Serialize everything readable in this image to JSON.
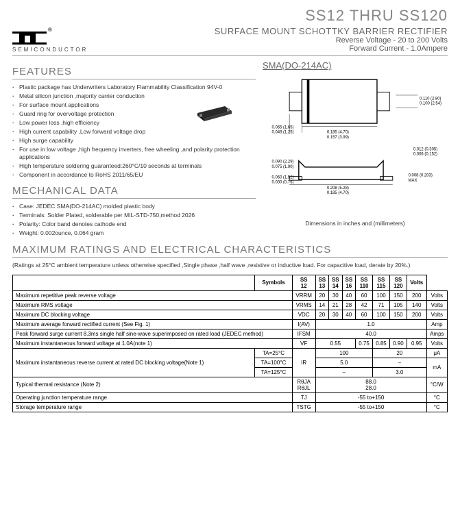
{
  "header": {
    "title": "SS12 THRU SS120",
    "subtitle": "SURFACE MOUNT SCHOTTKY BARRIER RECTIFIER",
    "reverse_voltage": "Reverse Voltage - 20 to 200 Volts",
    "forward_current": "Forward Current - 1.0Ampere",
    "logo_text": "SEMICONDUCTOR",
    "reg_mark": "®"
  },
  "features": {
    "heading": "FEATURES",
    "items": [
      "Plastic package has Underwriters Laboratory Flammability Classification 94V-0",
      "Metal silicon junction ,majority carrier conduction",
      "For surface mount applications",
      "Guard ring for overvoltage protection",
      "Low power loss ,high efficiency",
      "High current capability ,Low forward voltage drop",
      "High surge capability",
      "For use in low voltage ,high frequency inverters, free wheeling ,and polarity protection applications",
      "High temperature soldering guaranteed:260°C/10 seconds at terminals",
      "Component in accordance to RoHS 2011/65/EU"
    ]
  },
  "mechanical": {
    "heading": "MECHANICAL DATA",
    "items": [
      "Case: JEDEC SMA(DO-214AC) molded plastic body",
      "Terminals: Solder Plated, solderable per MIL-STD-750,method 2026",
      "Polarity: Color band denotes cathode end",
      "Weight: 0.002ounce, 0.064 gram"
    ]
  },
  "package": {
    "title": "SMA(DO-214AC)",
    "dim_caption": "Dimensions in inches and (millimeters)",
    "dims": {
      "d1": "0.110 (2.80)",
      "d1b": "0.100 (2.54)",
      "d2": "0.065 (1.65)",
      "d2b": "0.049 (1.25)",
      "d3": "0.185 (4.70)",
      "d3b": "0.157 (3.99)",
      "d4": "0.012 (0.305)",
      "d4b": "0.006 (0.152)",
      "d5": "0.090 (2.29)",
      "d5b": "0.075 (1.90)",
      "d6": "0.060 (1.52)",
      "d6b": "0.030 (0.76)",
      "d7": "0.008 (0.203)",
      "d7b": "MAX",
      "d8": "0.208 (5.28)",
      "d8b": "0.185 (4.70)"
    }
  },
  "ratings": {
    "heading": "MAXIMUM RATINGS AND ELECTRICAL CHARACTERISTICS",
    "note": "(Ratings at 25°C ambient temperature unless otherwise specified ,Single phase ,half wave ,resistive or inductive load. For capacitive load, derate by 20%.)",
    "columns": [
      "Symbols",
      "SS 12",
      "SS 13",
      "SS 14",
      "SS 16",
      "SS 110",
      "SS 115",
      "SS 120",
      "Volts"
    ],
    "rows": [
      {
        "label": "Maximum repetitive peak reverse voltage",
        "symbol": "VRRM",
        "vals": [
          "20",
          "30",
          "40",
          "60",
          "100",
          "150",
          "200"
        ],
        "unit": "Volts"
      },
      {
        "label": "Maximum RMS voltage",
        "symbol": "VRMS",
        "vals": [
          "14",
          "21",
          "28",
          "42",
          "71",
          "105",
          "140"
        ],
        "unit": "Volts"
      },
      {
        "label": "Maximum DC blocking voltage",
        "symbol": "VDC",
        "vals": [
          "20",
          "30",
          "40",
          "60",
          "100",
          "150",
          "200"
        ],
        "unit": "Volts"
      },
      {
        "label": "Maximum average forward rectified current (See Fig. 1)",
        "symbol": "I(AV)",
        "span": "1.0",
        "unit": "Amp"
      },
      {
        "label": "Peak forward surge current 8.3ms single half sine-wave superimposed on rated load (JEDEC method)",
        "symbol": "IFSM",
        "span": "40.0",
        "unit": "Amps"
      },
      {
        "label": "Maximum instantaneous forward voltage at 1.0A(note 1)",
        "symbol": "VF",
        "vals_merged": [
          {
            "text": "0.55",
            "span": 3
          },
          {
            "text": "0.75",
            "span": 1
          },
          {
            "text": "0.85",
            "span": 1
          },
          {
            "text": "0.90",
            "span": 1
          },
          {
            "text": "0.95",
            "span": 1
          }
        ],
        "unit": "Volts"
      },
      {
        "label": "Maximum instantaneous reverse current at rated DC blocking voltage(Note 1)",
        "symbol": "IR",
        "subrows": [
          {
            "cond": "TA=25°C",
            "vals": [
              {
                "text": "100",
                "span": 4
              },
              {
                "text": "20",
                "span": 3
              }
            ],
            "unit": "μA"
          },
          {
            "cond": "TA=100°C",
            "vals": [
              {
                "text": "5.0",
                "span": 4
              },
              {
                "text": "–",
                "span": 3
              }
            ],
            "unit": "mA"
          },
          {
            "cond": "TA=125°C",
            "vals": [
              {
                "text": "–",
                "span": 4
              },
              {
                "text": "3.0",
                "span": 3
              }
            ],
            "unit": ""
          }
        ]
      },
      {
        "label": "Typical thermal resistance (Note 2)",
        "symbol": "RθJA\nRθJL",
        "span": "88.0\n28.0",
        "unit": "°C/W"
      },
      {
        "label": "Operating junction temperature range",
        "symbol": "TJ",
        "span": "-55 to+150",
        "unit": "°C"
      },
      {
        "label": "Storage temperature range",
        "symbol": "TSTG",
        "span": "-55 to+150",
        "unit": "°C"
      }
    ]
  }
}
